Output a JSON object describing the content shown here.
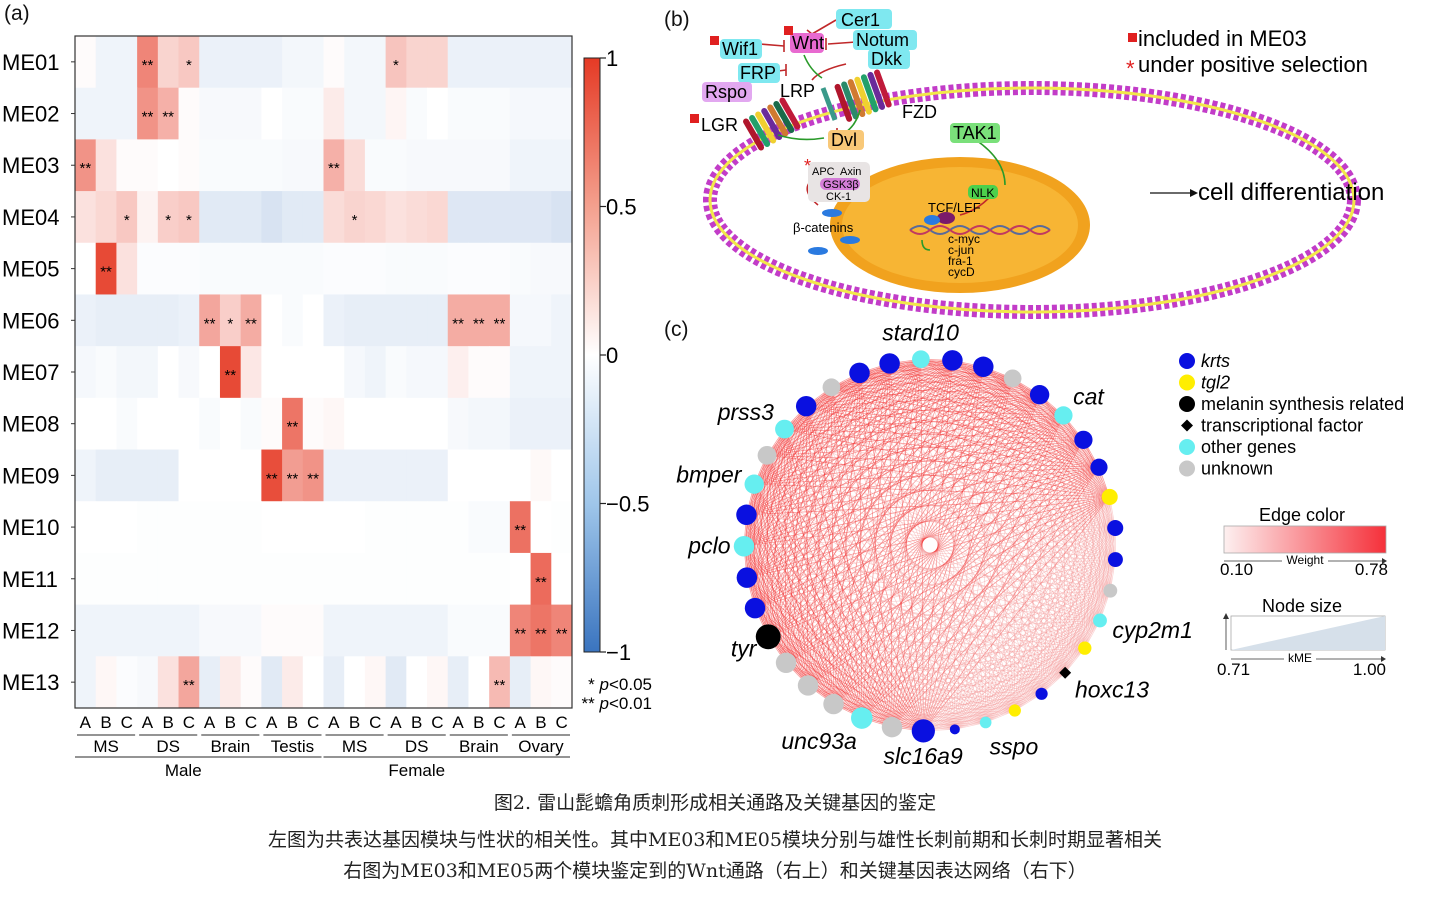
{
  "panels": {
    "a_label": "(a)",
    "b_label": "(b)",
    "c_label": "(c)"
  },
  "chart_data": [
    {
      "type": "heatmap",
      "title": "",
      "rows": [
        "ME01",
        "ME02",
        "ME03",
        "ME04",
        "ME05",
        "ME06",
        "ME07",
        "ME08",
        "ME09",
        "ME10",
        "ME11",
        "ME12",
        "ME13"
      ],
      "columns": [
        "A",
        "B",
        "C",
        "A",
        "B",
        "C",
        "A",
        "B",
        "C",
        "A",
        "B",
        "C",
        "A",
        "B",
        "C",
        "A",
        "B",
        "C",
        "A",
        "B",
        "C",
        "A",
        "B",
        "C"
      ],
      "column_groups": [
        {
          "label": "MS",
          "span": 3
        },
        {
          "label": "DS",
          "span": 3
        },
        {
          "label": "Brain",
          "span": 3
        },
        {
          "label": "Testis",
          "span": 3
        },
        {
          "label": "MS",
          "span": 3
        },
        {
          "label": "DS",
          "span": 3
        },
        {
          "label": "Brain",
          "span": 3
        },
        {
          "label": "Ovary",
          "span": 3
        }
      ],
      "super_groups": [
        {
          "label": "Male",
          "span": 12
        },
        {
          "label": "Female",
          "span": 12
        }
      ],
      "values": [
        [
          0.02,
          -0.08,
          -0.08,
          0.62,
          0.22,
          0.28,
          -0.1,
          -0.1,
          -0.1,
          -0.1,
          -0.06,
          -0.06,
          0.02,
          -0.06,
          -0.06,
          0.3,
          0.22,
          0.22,
          -0.1,
          -0.1,
          -0.1,
          -0.1,
          -0.1,
          -0.1
        ],
        [
          -0.08,
          -0.08,
          -0.08,
          0.55,
          0.4,
          0.02,
          -0.04,
          -0.04,
          -0.04,
          0.0,
          -0.03,
          -0.03,
          0.1,
          -0.06,
          -0.06,
          0.05,
          -0.03,
          0.0,
          -0.03,
          -0.03,
          -0.03,
          -0.05,
          -0.05,
          -0.05
        ],
        [
          0.55,
          0.15,
          0.02,
          0.02,
          0.0,
          0.02,
          -0.03,
          -0.03,
          -0.03,
          -0.03,
          -0.04,
          -0.04,
          0.4,
          0.18,
          -0.03,
          -0.03,
          -0.04,
          -0.04,
          -0.04,
          -0.04,
          -0.04,
          -0.08,
          -0.08,
          -0.08
        ],
        [
          0.15,
          0.2,
          0.28,
          0.06,
          0.25,
          0.28,
          -0.15,
          -0.15,
          -0.15,
          -0.2,
          -0.15,
          -0.15,
          0.18,
          0.22,
          0.2,
          0.15,
          0.18,
          0.2,
          -0.17,
          -0.17,
          -0.17,
          -0.17,
          -0.17,
          -0.2
        ],
        [
          0.0,
          0.92,
          0.15,
          -0.02,
          -0.02,
          -0.02,
          -0.03,
          -0.03,
          -0.03,
          -0.03,
          -0.03,
          -0.03,
          -0.02,
          -0.02,
          -0.02,
          -0.03,
          -0.03,
          -0.03,
          -0.02,
          -0.02,
          -0.02,
          -0.03,
          -0.04,
          -0.04
        ],
        [
          -0.1,
          -0.12,
          -0.12,
          -0.12,
          -0.12,
          -0.1,
          0.45,
          0.25,
          0.42,
          0.0,
          -0.03,
          0.0,
          -0.1,
          -0.12,
          -0.12,
          -0.12,
          -0.12,
          -0.12,
          0.42,
          0.42,
          0.42,
          -0.05,
          -0.05,
          -0.08
        ],
        [
          -0.05,
          -0.03,
          -0.06,
          -0.06,
          0.0,
          -0.04,
          0.0,
          0.92,
          0.12,
          0.0,
          0.0,
          0.0,
          0.0,
          -0.05,
          -0.08,
          -0.03,
          -0.05,
          -0.05,
          0.08,
          0.02,
          0.02,
          -0.08,
          -0.08,
          -0.08
        ],
        [
          0.0,
          0.0,
          -0.03,
          0.0,
          0.0,
          0.0,
          -0.03,
          0.0,
          -0.03,
          0.02,
          0.7,
          0.02,
          0.04,
          0.0,
          0.0,
          0.0,
          0.0,
          0.0,
          -0.04,
          -0.06,
          -0.06,
          -0.1,
          -0.1,
          -0.1
        ],
        [
          -0.08,
          -0.12,
          -0.12,
          -0.12,
          -0.12,
          0.0,
          0.0,
          0.0,
          0.0,
          0.9,
          0.5,
          0.55,
          -0.1,
          -0.1,
          -0.1,
          -0.1,
          -0.1,
          -0.1,
          0.0,
          0.0,
          0.0,
          0.0,
          0.03,
          0.0
        ],
        [
          0.0,
          0.0,
          0.0,
          -0.01,
          -0.01,
          -0.01,
          -0.01,
          -0.01,
          -0.01,
          0.0,
          0.0,
          0.0,
          0.0,
          0.0,
          -0.01,
          -0.01,
          -0.01,
          -0.01,
          -0.01,
          -0.03,
          -0.03,
          0.72,
          0.0,
          -0.01
        ],
        [
          -0.01,
          -0.01,
          -0.01,
          -0.01,
          -0.01,
          -0.01,
          -0.01,
          -0.01,
          -0.01,
          -0.01,
          -0.01,
          -0.01,
          -0.01,
          -0.01,
          -0.01,
          -0.01,
          -0.01,
          -0.01,
          -0.01,
          -0.01,
          -0.01,
          0.0,
          0.75,
          0.0
        ],
        [
          -0.08,
          -0.08,
          -0.08,
          -0.08,
          -0.08,
          -0.08,
          -0.04,
          -0.04,
          -0.04,
          0.02,
          0.02,
          0.02,
          -0.08,
          -0.08,
          -0.08,
          -0.08,
          -0.08,
          -0.08,
          -0.03,
          -0.03,
          -0.03,
          0.62,
          0.7,
          0.62
        ],
        [
          -0.08,
          0.04,
          -0.02,
          -0.04,
          0.15,
          0.45,
          -0.12,
          0.1,
          0.02,
          -0.15,
          0.1,
          0.0,
          -0.12,
          0.0,
          0.04,
          -0.15,
          0.0,
          0.04,
          -0.12,
          0.0,
          0.35,
          -0.12,
          0.04,
          0.02
        ]
      ],
      "significance": [
        [
          "",
          "",
          "",
          "**",
          "",
          "*",
          "",
          "",
          "",
          "",
          "",
          "",
          "",
          "",
          "",
          "*",
          "",
          "",
          "",
          "",
          "",
          "",
          "",
          ""
        ],
        [
          "",
          "",
          "",
          "**",
          "**",
          "",
          "",
          "",
          "",
          "",
          "",
          "",
          "",
          "",
          "",
          "",
          "",
          "",
          "",
          "",
          "",
          "",
          "",
          ""
        ],
        [
          "**",
          "",
          "",
          "",
          "",
          "",
          "",
          "",
          "",
          "",
          "",
          "",
          "**",
          "",
          "",
          "",
          "",
          "",
          "",
          "",
          "",
          "",
          "",
          ""
        ],
        [
          "",
          "",
          "*",
          "",
          "*",
          "*",
          "",
          "",
          "",
          "",
          "",
          "",
          "",
          "*",
          "",
          "",
          "",
          "",
          "",
          "",
          "",
          "",
          "",
          ""
        ],
        [
          "",
          "**",
          "",
          "",
          "",
          "",
          "",
          "",
          "",
          "",
          "",
          "",
          "",
          "",
          "",
          "",
          "",
          "",
          "",
          "",
          "",
          "",
          "",
          ""
        ],
        [
          "",
          "",
          "",
          "",
          "",
          "",
          "**",
          "*",
          "**",
          "",
          "",
          "",
          "",
          "",
          "",
          "",
          "",
          "",
          "**",
          "**",
          "**",
          "",
          "",
          ""
        ],
        [
          "",
          "",
          "",
          "",
          "",
          "",
          "",
          "**",
          "",
          "",
          "",
          "",
          "",
          "",
          "",
          "",
          "",
          "",
          "",
          "",
          "",
          "",
          "",
          ""
        ],
        [
          "",
          "",
          "",
          "",
          "",
          "",
          "",
          "",
          "",
          "",
          "**",
          "",
          "",
          "",
          "",
          "",
          "",
          "",
          "",
          "",
          "",
          "",
          "",
          ""
        ],
        [
          "",
          "",
          "",
          "",
          "",
          "",
          "",
          "",
          "",
          "**",
          "**",
          "**",
          "",
          "",
          "",
          "",
          "",
          "",
          "",
          "",
          "",
          "",
          "",
          ""
        ],
        [
          "",
          "",
          "",
          "",
          "",
          "",
          "",
          "",
          "",
          "",
          "",
          "",
          "",
          "",
          "",
          "",
          "",
          "",
          "",
          "",
          "",
          "**",
          "",
          ""
        ],
        [
          "",
          "",
          "",
          "",
          "",
          "",
          "",
          "",
          "",
          "",
          "",
          "",
          "",
          "",
          "",
          "",
          "",
          "",
          "",
          "",
          "",
          "",
          "**",
          ""
        ],
        [
          "",
          "",
          "",
          "",
          "",
          "",
          "",
          "",
          "",
          "",
          "",
          "",
          "",
          "",
          "",
          "",
          "",
          "",
          "",
          "",
          "",
          "**",
          "**",
          "**"
        ],
        [
          "",
          "",
          "",
          "",
          "",
          "**",
          "",
          "",
          "",
          "",
          "",
          "",
          "",
          "",
          "",
          "",
          "",
          "",
          "",
          "",
          "**",
          "",
          "",
          ""
        ]
      ],
      "colorbar": {
        "min": -1,
        "max": 1,
        "ticks": [
          {
            "v": 1,
            "label": "1"
          },
          {
            "v": 0.5,
            "label": "0.5"
          },
          {
            "v": 0,
            "label": "0"
          },
          {
            "v": -0.5,
            "label": "−0.5"
          },
          {
            "v": -1,
            "label": "−1"
          }
        ],
        "low_color": "#3a74bf",
        "mid_color": "#ffffff",
        "high_color": "#e53a25"
      },
      "significance_legend": [
        {
          "mark": "*",
          "text": "p<0.05"
        },
        {
          "mark": "**",
          "text": "p<0.01"
        }
      ]
    },
    {
      "type": "network",
      "legend_node_types": [
        {
          "key": "krts",
          "label": "krts",
          "color": "#0a10e0",
          "shape": "circle",
          "italic": true
        },
        {
          "key": "tgl2",
          "label": "tgl2",
          "color": "#ffee00",
          "shape": "circle",
          "italic": true
        },
        {
          "key": "melanin",
          "label": "melanin synthesis related",
          "color": "#000000",
          "shape": "circle",
          "italic": false
        },
        {
          "key": "tf",
          "label": "transcriptional factor",
          "color": "#000000",
          "shape": "diamond",
          "italic": false
        },
        {
          "key": "other",
          "label": "other genes",
          "color": "#66eef0",
          "shape": "circle",
          "italic": false
        },
        {
          "key": "unknown",
          "label": "unknown",
          "color": "#c8c8c8",
          "shape": "circle",
          "italic": false
        }
      ],
      "edge_color_legend": {
        "title": "Edge color",
        "axis": "Weight",
        "min": "0.10",
        "max": "0.78",
        "low_color": "#fdf0f0",
        "high_color": "#f5303a"
      },
      "node_size_legend": {
        "title": "Node size",
        "axis": "kME",
        "min": "0.71",
        "max": "1.00"
      },
      "nodes": [
        {
          "type": "unknown",
          "label": "",
          "kme": 0.85
        },
        {
          "type": "krts",
          "label": "",
          "kme": 0.9
        },
        {
          "type": "krts",
          "label": "",
          "kme": 0.9
        },
        {
          "type": "other",
          "label": "stard10",
          "kme": 0.85
        },
        {
          "type": "krts",
          "label": "",
          "kme": 0.9
        },
        {
          "type": "krts",
          "label": "",
          "kme": 0.9
        },
        {
          "type": "unknown",
          "label": "",
          "kme": 0.85
        },
        {
          "type": "krts",
          "label": "",
          "kme": 0.88
        },
        {
          "type": "other",
          "label": "cat",
          "kme": 0.86
        },
        {
          "type": "krts",
          "label": "",
          "kme": 0.86
        },
        {
          "type": "krts",
          "label": "",
          "kme": 0.84
        },
        {
          "type": "tgl2",
          "label": "",
          "kme": 0.82
        },
        {
          "type": "krts",
          "label": "",
          "kme": 0.82
        },
        {
          "type": "krts",
          "label": "",
          "kme": 0.8
        },
        {
          "type": "unknown",
          "label": "",
          "kme": 0.78
        },
        {
          "type": "other",
          "label": "cyp2m1",
          "kme": 0.78
        },
        {
          "type": "tgl2",
          "label": "",
          "kme": 0.77
        },
        {
          "type": "tf",
          "label": "hoxc13",
          "kme": 0.75
        },
        {
          "type": "krts",
          "label": "",
          "kme": 0.75
        },
        {
          "type": "tgl2",
          "label": "",
          "kme": 0.75
        },
        {
          "type": "other",
          "label": "sspo",
          "kme": 0.74
        },
        {
          "type": "krts",
          "label": "",
          "kme": 0.71
        },
        {
          "type": "krts",
          "label": "slc16a9",
          "kme": 0.95
        },
        {
          "type": "unknown",
          "label": "",
          "kme": 0.9
        },
        {
          "type": "other",
          "label": "unc93a",
          "kme": 0.92
        },
        {
          "type": "unknown",
          "label": "",
          "kme": 0.9
        },
        {
          "type": "unknown",
          "label": "",
          "kme": 0.9
        },
        {
          "type": "unknown",
          "label": "",
          "kme": 0.9
        },
        {
          "type": "melanin",
          "label": "tyr",
          "kme": 0.98
        },
        {
          "type": "krts",
          "label": "",
          "kme": 0.9
        },
        {
          "type": "krts",
          "label": "",
          "kme": 0.9
        },
        {
          "type": "other",
          "label": "pclo",
          "kme": 0.9
        },
        {
          "type": "krts",
          "label": "",
          "kme": 0.9
        },
        {
          "type": "other",
          "label": "bmper",
          "kme": 0.88
        },
        {
          "type": "unknown",
          "label": "",
          "kme": 0.87
        },
        {
          "type": "other",
          "label": "prss3",
          "kme": 0.87
        },
        {
          "type": "krts",
          "label": "",
          "kme": 0.9
        }
      ]
    }
  ],
  "pathway": {
    "legend": [
      {
        "mark": "square",
        "color": "#e02020",
        "text": "included in ME03"
      },
      {
        "mark": "*",
        "color": "#e02020",
        "text": "under positive selection"
      }
    ],
    "labels": {
      "cer1": "Cer1",
      "wnt": "Wnt",
      "notum": "Notum",
      "wif1": "Wif1",
      "dkk": "Dkk",
      "frp": "FRP",
      "rspo": "Rspo",
      "lrp": "LRP",
      "fzd": "FZD",
      "lgr": "LGR",
      "dvl": "Dvl",
      "tak1": "TAK1",
      "apc": "APC",
      "axin": "Axin",
      "gsk3b": "GSK3β",
      "ck1": "CK-1",
      "nlk": "NLK",
      "tcf": "TCF/LEF",
      "bcat": "β-catenins",
      "cmyc": "c-myc",
      "cjun": "c-jun",
      "fra1": "fra-1",
      "cycd": "cycD",
      "outcome": "cell differentiation"
    }
  },
  "caption": {
    "title": "图2. 雷山髭蟾角质刺形成相关通路及关键基因的鉴定",
    "line1": "左图为共表达基因模块与性状的相关性。其中ME03和ME05模块分别与雄性长刺前期和长刺时期显著相关",
    "line2": "右图为ME03和ME05两个模块鉴定到的Wnt通路（右上）和关键基因表达网络（右下）"
  }
}
